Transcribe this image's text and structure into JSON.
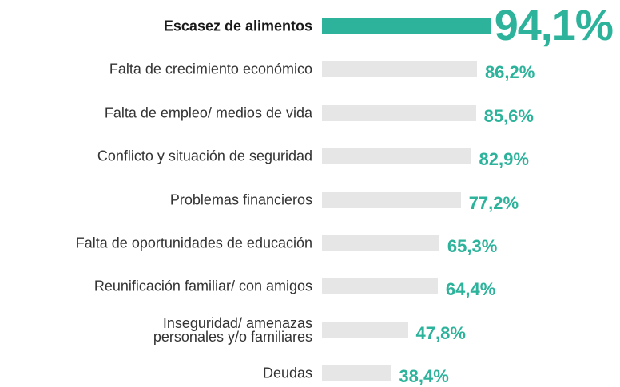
{
  "chart_data": {
    "type": "bar",
    "orientation": "horizontal",
    "categories": [
      "Escasez de alimentos",
      "Falta de crecimiento económico",
      "Falta de empleo/ medios de vida",
      "Conflicto y situación de seguridad",
      "Problemas financieros",
      "Falta de oportunidades de educación",
      "Reunificación familiar/ con amigos",
      "Inseguridad/ amenazas\npersonales y/o familiares",
      "Deudas"
    ],
    "values": [
      94.1,
      86.2,
      85.6,
      82.9,
      77.2,
      65.3,
      64.4,
      47.8,
      38.4
    ],
    "value_labels": [
      "94,1%",
      "86,2%",
      "85,6%",
      "82,9%",
      "77,2%",
      "65,3%",
      "64,4%",
      "47,8%",
      "38,4%"
    ],
    "color": "#e6e6e6",
    "label_color": "#2db39b",
    "highlight": {
      "index": 0,
      "color": "#2db39b"
    }
  }
}
